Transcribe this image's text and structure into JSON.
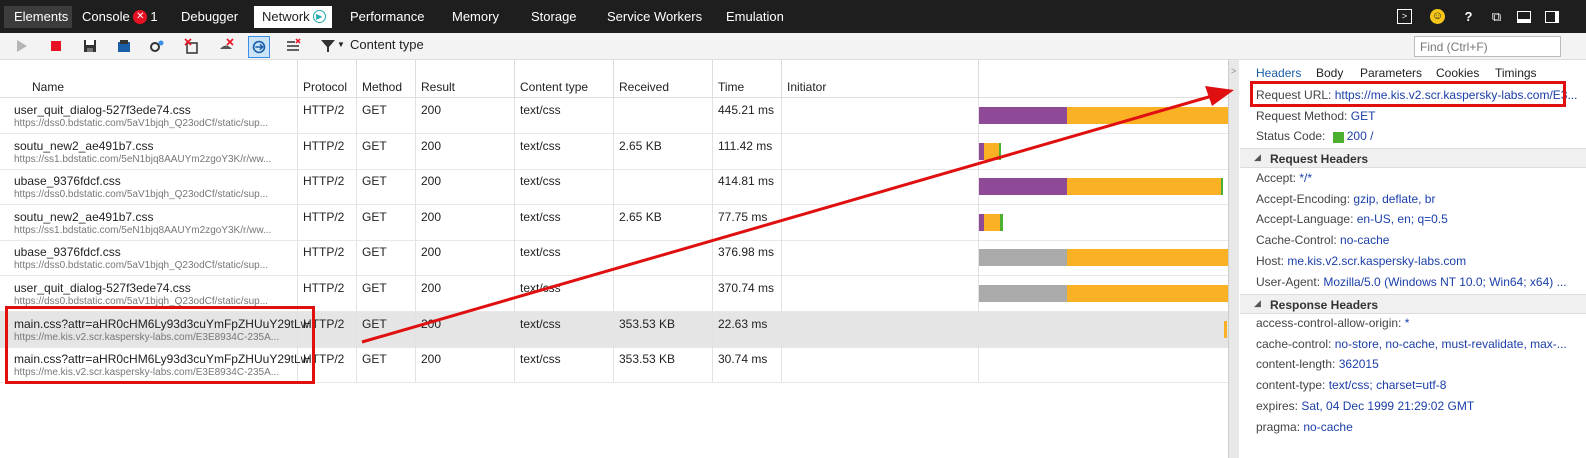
{
  "tabs": [
    {
      "label": "Elements",
      "active": false
    },
    {
      "label": "Console",
      "active": false,
      "error_count": "1"
    },
    {
      "label": "Debugger",
      "active": false
    },
    {
      "label": "Network",
      "active": true
    },
    {
      "label": "Performance",
      "active": false
    },
    {
      "label": "Memory",
      "active": false
    },
    {
      "label": "Storage",
      "active": false
    },
    {
      "label": "Service Workers",
      "active": false
    },
    {
      "label": "Emulation",
      "active": false
    }
  ],
  "toolbar": {
    "filter_label": "Content type",
    "find_placeholder": "Find (Ctrl+F)"
  },
  "columns": [
    "Name",
    "Protocol",
    "Method",
    "Result",
    "Content type",
    "Received",
    "Time",
    "Initiator"
  ],
  "requests": [
    {
      "name": "user_quit_dialog-527f3ede74.css",
      "url": "https://dss0.bdstatic.com/5aV1bjqh_Q23odCf/static/sup...",
      "protocol": "HTTP/2",
      "method": "GET",
      "result": "200",
      "type": "text/css",
      "received": "",
      "time": "445.21 ms"
    },
    {
      "name": "soutu_new2_ae491b7.css",
      "url": "https://ss1.bdstatic.com/5eN1bjq8AAUYm2zgoY3K/r/ww...",
      "protocol": "HTTP/2",
      "method": "GET",
      "result": "200",
      "type": "text/css",
      "received": "2.65 KB",
      "time": "111.42 ms"
    },
    {
      "name": "ubase_9376fdcf.css",
      "url": "https://dss0.bdstatic.com/5aV1bjqh_Q23odCf/static/sup...",
      "protocol": "HTTP/2",
      "method": "GET",
      "result": "200",
      "type": "text/css",
      "received": "",
      "time": "414.81 ms"
    },
    {
      "name": "soutu_new2_ae491b7.css",
      "url": "https://ss1.bdstatic.com/5eN1bjq8AAUYm2zgoY3K/r/ww...",
      "protocol": "HTTP/2",
      "method": "GET",
      "result": "200",
      "type": "text/css",
      "received": "2.65 KB",
      "time": "77.75 ms"
    },
    {
      "name": "ubase_9376fdcf.css",
      "url": "https://dss0.bdstatic.com/5aV1bjqh_Q23odCf/static/sup...",
      "protocol": "HTTP/2",
      "method": "GET",
      "result": "200",
      "type": "text/css",
      "received": "",
      "time": "376.98 ms"
    },
    {
      "name": "user_quit_dialog-527f3ede74.css",
      "url": "https://dss0.bdstatic.com/5aV1bjqh_Q23odCf/static/sup...",
      "protocol": "HTTP/2",
      "method": "GET",
      "result": "200",
      "type": "text/css",
      "received": "",
      "time": "370.74 ms"
    },
    {
      "name": "main.css?attr=aHR0cHM6Ly93d3cuYmFpZHUuY29tLw",
      "url": "https://me.kis.v2.scr.kaspersky-labs.com/E3E8934C-235A...",
      "protocol": "HTTP/2",
      "method": "GET",
      "result": "200",
      "type": "text/css",
      "received": "353.53 KB",
      "time": "22.63 ms"
    },
    {
      "name": "main.css?attr=aHR0cHM6Ly93d3cuYmFpZHUuY29tLw",
      "url": "https://me.kis.v2.scr.kaspersky-labs.com/E3E8934C-235A...",
      "protocol": "HTTP/2",
      "method": "GET",
      "result": "200",
      "type": "text/css",
      "received": "353.53 KB",
      "time": "30.74 ms"
    }
  ],
  "details": {
    "tabs": [
      "Headers",
      "Body",
      "Parameters",
      "Cookies",
      "Timings"
    ],
    "request_url_label": "Request URL:",
    "request_url": "https://me.kis.v2.scr.kaspersky-labs.com/E3...",
    "request_method_label": "Request Method:",
    "request_method": "GET",
    "status_code_label": "Status Code:",
    "status_code": "200 /",
    "request_headers_title": "Request Headers",
    "request_headers": [
      {
        "k": "Accept:",
        "v": "*/*"
      },
      {
        "k": "Accept-Encoding:",
        "v": "gzip, deflate, br"
      },
      {
        "k": "Accept-Language:",
        "v": "en-US, en; q=0.5"
      },
      {
        "k": "Cache-Control:",
        "v": "no-cache"
      },
      {
        "k": "Host:",
        "v": "me.kis.v2.scr.kaspersky-labs.com"
      },
      {
        "k": "User-Agent:",
        "v": "Mozilla/5.0 (Windows NT 10.0; Win64; x64) ..."
      }
    ],
    "response_headers_title": "Response Headers",
    "response_headers": [
      {
        "k": "access-control-allow-origin:",
        "v": "*"
      },
      {
        "k": "cache-control:",
        "v": "no-store, no-cache, must-revalidate, max-..."
      },
      {
        "k": "content-length:",
        "v": "362015"
      },
      {
        "k": "content-type:",
        "v": "text/css; charset=utf-8"
      },
      {
        "k": "expires:",
        "v": "Sat, 04 Dec 1999 21:29:02 GMT"
      },
      {
        "k": "pragma:",
        "v": "no-cache"
      }
    ]
  },
  "colors": {
    "purple": "#8e4a96",
    "orange": "#fbb124",
    "gray": "#aaaaaa",
    "green": "#4caf2f",
    "red": "#e01010",
    "link": "#1b3fa8"
  }
}
